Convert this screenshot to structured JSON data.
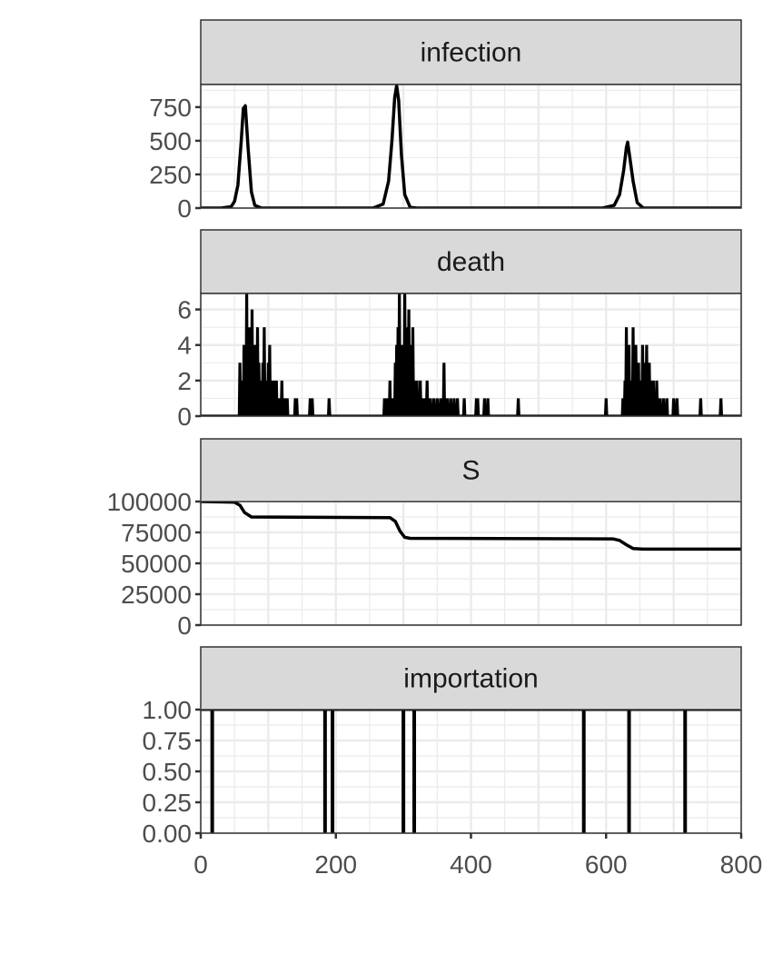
{
  "chart_data": {
    "type": "line",
    "layout": "facet_wrap (single column), free y scales",
    "x_ticks": [
      0,
      200,
      400,
      600,
      800
    ],
    "xlim": [
      0,
      800
    ],
    "grid": true,
    "panels": [
      {
        "title": "infection",
        "ylim": [
          0,
          918
        ],
        "y_ticks": [
          0,
          250,
          500,
          750
        ],
        "y_tick_labels": [
          "0",
          "250",
          "500",
          "750"
        ],
        "style": "line",
        "points": [
          [
            0,
            0
          ],
          [
            30,
            0
          ],
          [
            45,
            10
          ],
          [
            50,
            50
          ],
          [
            55,
            170
          ],
          [
            60,
            500
          ],
          [
            63,
            740
          ],
          [
            66,
            760
          ],
          [
            70,
            450
          ],
          [
            75,
            120
          ],
          [
            80,
            20
          ],
          [
            90,
            0
          ],
          [
            255,
            0
          ],
          [
            270,
            30
          ],
          [
            278,
            200
          ],
          [
            283,
            500
          ],
          [
            287,
            820
          ],
          [
            290,
            910
          ],
          [
            293,
            800
          ],
          [
            297,
            400
          ],
          [
            302,
            100
          ],
          [
            310,
            5
          ],
          [
            320,
            0
          ],
          [
            595,
            0
          ],
          [
            612,
            20
          ],
          [
            620,
            100
          ],
          [
            626,
            280
          ],
          [
            630,
            450
          ],
          [
            632,
            490
          ],
          [
            635,
            380
          ],
          [
            640,
            200
          ],
          [
            646,
            40
          ],
          [
            655,
            0
          ],
          [
            800,
            0
          ]
        ]
      },
      {
        "title": "death",
        "ylim": [
          0,
          6.9
        ],
        "y_ticks": [
          0,
          2,
          4,
          6
        ],
        "y_tick_labels": [
          "0",
          "2",
          "4",
          "6"
        ],
        "style": "daily",
        "nonzero_days": {
          "58": 3,
          "60": 1,
          "62": 2,
          "64": 4,
          "66": 2,
          "68": 7,
          "70": 3,
          "72": 5,
          "74": 2,
          "76": 6,
          "78": 3,
          "80": 4,
          "82": 1,
          "84": 5,
          "86": 3,
          "88": 2,
          "92": 3,
          "94": 5,
          "96": 2,
          "98": 1,
          "100": 3,
          "102": 4,
          "104": 2,
          "106": 1,
          "108": 2,
          "110": 1,
          "112": 2,
          "115": 1,
          "118": 1,
          "120": 2,
          "123": 1,
          "125": 1,
          "128": 1,
          "140": 1,
          "142": 1,
          "162": 1,
          "165": 1,
          "190": 1,
          "272": 1,
          "276": 1,
          "280": 2,
          "284": 1,
          "288": 3,
          "290": 4,
          "292": 5,
          "294": 7,
          "296": 3,
          "298": 4,
          "300": 2,
          "302": 7,
          "304": 5,
          "306": 3,
          "308": 6,
          "310": 4,
          "312": 2,
          "314": 5,
          "316": 1,
          "318": 2,
          "320": 2,
          "322": 1,
          "325": 2,
          "328": 1,
          "332": 1,
          "335": 2,
          "338": 1,
          "340": 1,
          "345": 1,
          "350": 1,
          "355": 1,
          "360": 3,
          "365": 1,
          "370": 1,
          "375": 1,
          "380": 1,
          "390": 1,
          "408": 1,
          "410": 1,
          "420": 1,
          "425": 1,
          "470": 1,
          "600": 1,
          "625": 1,
          "628": 2,
          "630": 5,
          "632": 3,
          "634": 4,
          "636": 2,
          "638": 1,
          "640": 5,
          "642": 3,
          "644": 4,
          "646": 2,
          "648": 3,
          "650": 2,
          "652": 1,
          "654": 4,
          "656": 3,
          "658": 2,
          "660": 4,
          "662": 1,
          "664": 3,
          "666": 2,
          "670": 2,
          "672": 1,
          "675": 2,
          "678": 1,
          "680": 1,
          "685": 1,
          "690": 1,
          "700": 1,
          "705": 1,
          "740": 1,
          "770": 1
        }
      },
      {
        "title": "S",
        "ylim": [
          0,
          100000
        ],
        "y_ticks": [
          0,
          25000,
          50000,
          75000,
          100000
        ],
        "y_tick_labels": [
          "0",
          "25000",
          "50000",
          "75000",
          "100000"
        ],
        "style": "line",
        "points": [
          [
            0,
            100000
          ],
          [
            50,
            99500
          ],
          [
            58,
            97000
          ],
          [
            65,
            91000
          ],
          [
            75,
            87500
          ],
          [
            280,
            87000
          ],
          [
            288,
            84000
          ],
          [
            295,
            76000
          ],
          [
            302,
            71000
          ],
          [
            310,
            70200
          ],
          [
            610,
            69800
          ],
          [
            620,
            68500
          ],
          [
            630,
            65000
          ],
          [
            640,
            62000
          ],
          [
            655,
            61500
          ],
          [
            800,
            61500
          ]
        ]
      },
      {
        "title": "importation",
        "ylim": [
          0,
          1
        ],
        "y_ticks": [
          0,
          0.25,
          0.5,
          0.75,
          1
        ],
        "y_tick_labels": [
          "0.00",
          "0.25",
          "0.50",
          "0.75",
          "1.00"
        ],
        "style": "spikes",
        "events": [
          17,
          184,
          195,
          300,
          316,
          567,
          634,
          717
        ]
      }
    ],
    "x_tick_labels": [
      "0",
      "200",
      "400",
      "600",
      "800"
    ]
  }
}
